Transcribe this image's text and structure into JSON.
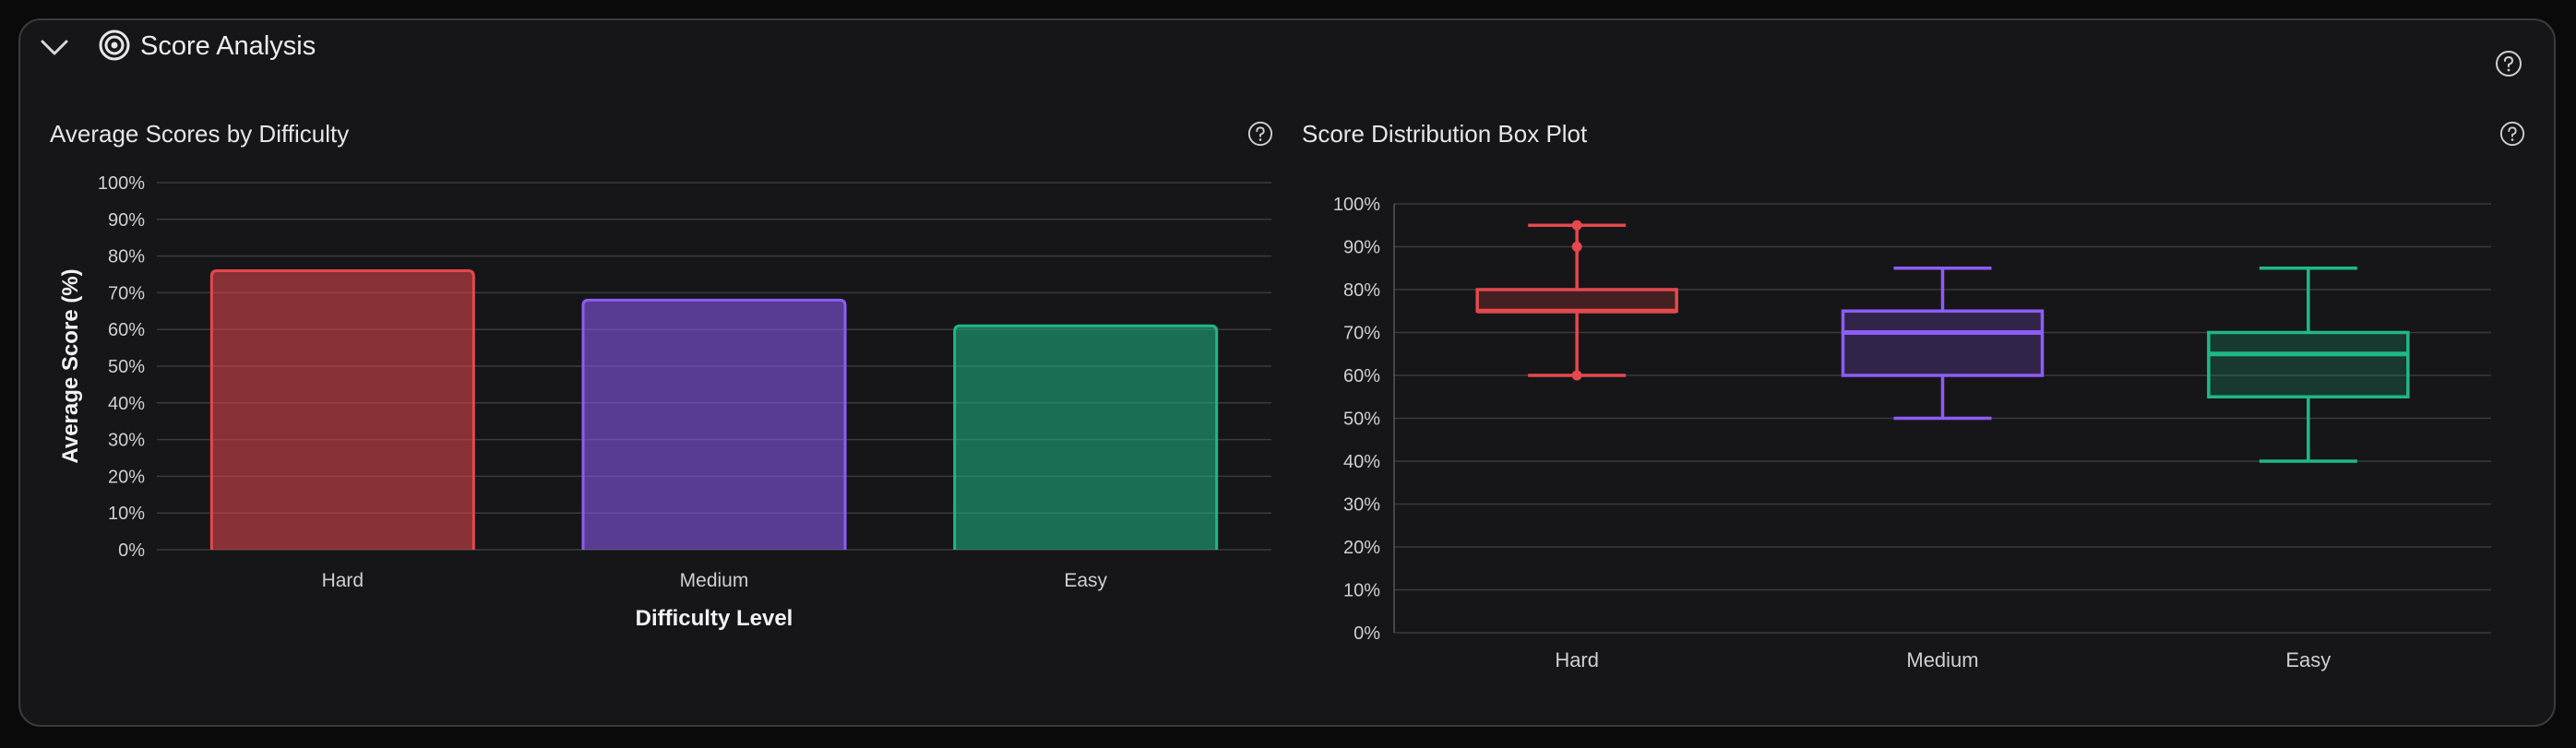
{
  "section": {
    "title": "Score Analysis",
    "collapse_icon": "chevron-down-icon",
    "title_icon": "target-icon",
    "help_icon": "help-circle-icon"
  },
  "colors": {
    "hard": "#e5484d",
    "medium": "#8e5cf7",
    "easy": "#1fb886",
    "grid": "#3a3a3f",
    "axis_text": "#cfcfd3"
  },
  "charts": {
    "bar_title": "Average Scores by Difficulty",
    "box_title": "Score Distribution Box Plot"
  },
  "chart_data": [
    {
      "type": "bar",
      "title": "Average Scores by Difficulty",
      "categories": [
        "Hard",
        "Medium",
        "Easy"
      ],
      "values": [
        76,
        68,
        61
      ],
      "xlabel": "Difficulty Level",
      "ylabel": "Average Score (%)",
      "ylim": [
        0,
        100
      ],
      "yticks": [
        "0%",
        "10%",
        "20%",
        "30%",
        "40%",
        "50%",
        "60%",
        "70%",
        "80%",
        "90%",
        "100%"
      ],
      "grid": true,
      "colors": [
        "#e5484d",
        "#8e5cf7",
        "#1fb886"
      ]
    },
    {
      "type": "box",
      "title": "Score Distribution Box Plot",
      "categories": [
        "Hard",
        "Medium",
        "Easy"
      ],
      "boxes": [
        {
          "min": 60,
          "q1": 75,
          "median": 75,
          "q3": 80,
          "max": 95,
          "points": [
            60,
            90,
            95
          ]
        },
        {
          "min": 50,
          "q1": 60,
          "median": 70,
          "q3": 75,
          "max": 85,
          "points": []
        },
        {
          "min": 40,
          "q1": 55,
          "median": 65,
          "q3": 70,
          "max": 85,
          "points": []
        }
      ],
      "ylim": [
        0,
        100
      ],
      "yticks": [
        "0%",
        "10%",
        "20%",
        "30%",
        "40%",
        "50%",
        "60%",
        "70%",
        "80%",
        "90%",
        "100%"
      ],
      "grid": true,
      "colors": [
        "#e5484d",
        "#8e5cf7",
        "#1fb886"
      ]
    }
  ]
}
